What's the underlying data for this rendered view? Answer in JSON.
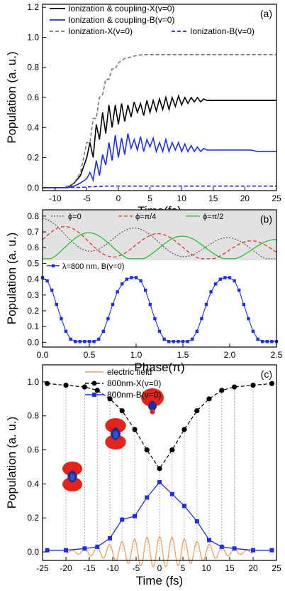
{
  "chart_data": [
    {
      "type": "line",
      "panel_label": "(a)",
      "xlabel": "Time(fs)",
      "ylabel": "Population (a. u.)",
      "xlim": [
        -12,
        25
      ],
      "ylim": [
        -0.02,
        1.22
      ],
      "xticks": [
        "-10",
        "-5",
        "0",
        "5",
        "10",
        "15",
        "20",
        "25"
      ],
      "yticks": [
        "0.0",
        "0.2",
        "0.4",
        "0.6",
        "0.8",
        "1.0",
        "1.2"
      ],
      "legend": [
        "Ionization & coupling-X(v=0)",
        "Ionization & coupling-B(v=0)",
        "Ionization-X(v=0)",
        "Ionization-B(v=0)"
      ],
      "series": [
        {
          "name": "Ionization & coupling-X(v=0)",
          "color": "#000000",
          "style": "solid",
          "x": [
            -12,
            -8,
            -7,
            -6,
            -5,
            -4.5,
            -4,
            -3.5,
            -3,
            -2.5,
            -2,
            -1.5,
            -1,
            -0.5,
            0,
            0.5,
            1,
            1.5,
            2,
            2.5,
            3,
            3.5,
            4,
            4.5,
            5,
            5.5,
            6,
            6.5,
            7,
            7.5,
            8,
            8.5,
            9,
            9.5,
            10,
            10.5,
            11,
            11.5,
            12,
            12.5,
            13,
            13.5,
            14,
            15,
            16,
            17,
            18,
            19,
            20,
            21,
            22,
            23,
            24,
            25
          ],
          "y": [
            0,
            0,
            0.03,
            0.08,
            0.2,
            0.3,
            0.2,
            0.42,
            0.32,
            0.5,
            0.36,
            0.55,
            0.4,
            0.55,
            0.42,
            0.56,
            0.44,
            0.55,
            0.47,
            0.57,
            0.5,
            0.56,
            0.48,
            0.58,
            0.5,
            0.58,
            0.51,
            0.59,
            0.52,
            0.6,
            0.52,
            0.6,
            0.54,
            0.61,
            0.55,
            0.6,
            0.56,
            0.6,
            0.57,
            0.6,
            0.57,
            0.59,
            0.58,
            0.58,
            0.58,
            0.58,
            0.58,
            0.58,
            0.58,
            0.58,
            0.58,
            0.58,
            0.58,
            0.58
          ]
        },
        {
          "name": "Ionization & coupling-B(v=0)",
          "color": "#1f2fe6",
          "style": "solid",
          "x": [
            -12,
            -8,
            -7,
            -6,
            -5,
            -4.5,
            -4,
            -3.5,
            -3,
            -2.5,
            -2,
            -1.5,
            -1,
            -0.5,
            0,
            0.5,
            1,
            1.5,
            2,
            2.5,
            3,
            3.5,
            4,
            4.5,
            5,
            5.5,
            6,
            6.5,
            7,
            7.5,
            8,
            8.5,
            9,
            9.5,
            10,
            10.5,
            11,
            11.5,
            12,
            12.5,
            13,
            13.5,
            14,
            15,
            16,
            17,
            18,
            19,
            20,
            21,
            22,
            23,
            24,
            25
          ],
          "y": [
            0,
            0,
            0.01,
            0.03,
            0.06,
            0.1,
            0.05,
            0.18,
            0.08,
            0.22,
            0.15,
            0.3,
            0.18,
            0.35,
            0.2,
            0.33,
            0.22,
            0.36,
            0.26,
            0.32,
            0.25,
            0.34,
            0.24,
            0.32,
            0.27,
            0.33,
            0.24,
            0.3,
            0.24,
            0.32,
            0.24,
            0.3,
            0.25,
            0.3,
            0.24,
            0.29,
            0.24,
            0.28,
            0.24,
            0.27,
            0.24,
            0.26,
            0.25,
            0.25,
            0.25,
            0.25,
            0.25,
            0.25,
            0.25,
            0.25,
            0.24,
            0.24,
            0.24,
            0.24
          ]
        },
        {
          "name": "Ionization-X(v=0)",
          "color": "#777777",
          "style": "dashed",
          "x": [
            -12,
            -9,
            -8,
            -7,
            -6,
            -5,
            -4.5,
            -4,
            -3.5,
            -3,
            -2.5,
            -2,
            -1.5,
            -1,
            -0.5,
            0,
            1,
            2,
            3,
            4,
            5,
            6,
            7,
            8,
            10,
            15,
            20,
            25
          ],
          "y": [
            0,
            0,
            0.01,
            0.03,
            0.1,
            0.3,
            0.3,
            0.46,
            0.46,
            0.6,
            0.62,
            0.72,
            0.72,
            0.79,
            0.79,
            0.83,
            0.86,
            0.87,
            0.88,
            0.885,
            0.885,
            0.885,
            0.885,
            0.885,
            0.885,
            0.885,
            0.885,
            0.885
          ]
        },
        {
          "name": "Ionization-B(v=0)",
          "color": "#1f2fe6",
          "style": "dashed",
          "x": [
            -12,
            -8,
            -6,
            -5,
            -4,
            -3,
            -2,
            0,
            25
          ],
          "y": [
            0,
            0,
            0.002,
            0.004,
            0.006,
            0.008,
            0.01,
            0.01,
            0.01
          ]
        }
      ]
    },
    {
      "type": "line",
      "panel_label": "(b)",
      "xlabel": "Phase(π)",
      "ylabel": "Population (a. u.)",
      "xlim": [
        0,
        2.5
      ],
      "ylim": [
        -0.03,
        0.84
      ],
      "xticks": [
        "0.0",
        "0.5",
        "1.0",
        "1.5",
        "2.0",
        "2.5"
      ],
      "yticks": [
        "0.0",
        "0.1",
        "0.2",
        "0.3",
        "0.4",
        "0.5",
        "0.6",
        "0.7",
        "0.8"
      ],
      "inset_legend": [
        "ϕ=0",
        "ϕ=π/4",
        "ϕ=π/2"
      ],
      "series": [
        {
          "name": "λ=800 nm, B(v=0)",
          "color": "#1f2fe6",
          "style": "solid-square-markers",
          "x": [
            0,
            0.05,
            0.1,
            0.15,
            0.2,
            0.25,
            0.3,
            0.35,
            0.4,
            0.45,
            0.5,
            0.55,
            0.6,
            0.65,
            0.7,
            0.75,
            0.8,
            0.85,
            0.9,
            0.95,
            1.0,
            1.05,
            1.1,
            1.15,
            1.2,
            1.25,
            1.3,
            1.35,
            1.4,
            1.45,
            1.5,
            1.55,
            1.6,
            1.65,
            1.7,
            1.75,
            1.8,
            1.85,
            1.9,
            1.95,
            2.0,
            2.05,
            2.1,
            2.15,
            2.2,
            2.25,
            2.3,
            2.35,
            2.4,
            2.45,
            2.5
          ],
          "y": [
            0.41,
            0.39,
            0.33,
            0.24,
            0.15,
            0.07,
            0.02,
            0.005,
            0.005,
            0.005,
            0.005,
            0.005,
            0.02,
            0.07,
            0.15,
            0.24,
            0.32,
            0.37,
            0.4,
            0.41,
            0.41,
            0.39,
            0.33,
            0.24,
            0.15,
            0.07,
            0.02,
            0.005,
            0.005,
            0.005,
            0.005,
            0.005,
            0.02,
            0.07,
            0.15,
            0.24,
            0.32,
            0.37,
            0.4,
            0.41,
            0.41,
            0.39,
            0.33,
            0.24,
            0.15,
            0.07,
            0.02,
            0.005,
            0.005,
            0.005,
            0.005
          ]
        },
        {
          "name": "ϕ=0",
          "color": "#555555",
          "style": "dotted",
          "x": [
            0,
            2.5
          ],
          "y": [
            0.74,
            0.62
          ],
          "wave_phase": 0
        },
        {
          "name": "ϕ=π/4",
          "color": "#e6281c",
          "style": "dashed",
          "x": [
            0,
            2.5
          ],
          "y": [
            0.7,
            0.62
          ],
          "wave_phase": 0.25
        },
        {
          "name": "ϕ=π/2",
          "color": "#19c219",
          "style": "solid",
          "x": [
            0,
            2.5
          ],
          "y": [
            0.66,
            0.64
          ],
          "wave_phase": 0.5
        }
      ],
      "legend": [
        "λ=800 nm, B(v=0)"
      ]
    },
    {
      "type": "line",
      "panel_label": "(c)",
      "xlabel": "Time (fs)",
      "ylabel": "Population (a. u.)",
      "xlim": [
        -25,
        25
      ],
      "ylim": [
        -0.05,
        1.1
      ],
      "xticks": [
        "-25",
        "-20",
        "-15",
        "-10",
        "-5",
        "0",
        "5",
        "10",
        "15",
        "20",
        "25"
      ],
      "yticks": [
        "0.0",
        "0.2",
        "0.4",
        "0.6",
        "0.8",
        "1.0"
      ],
      "legend": [
        "electric field",
        "800nm-X(v=0)",
        "800nm-B(v=0)"
      ],
      "series": [
        {
          "name": "800nm-X(v=0)",
          "color": "#000000",
          "style": "dashed-circle-markers",
          "x": [
            -24,
            -20,
            -16,
            -13.3,
            -10.6,
            -8,
            -5.3,
            -2.7,
            0,
            2.7,
            5.3,
            8,
            10.6,
            13.3,
            16,
            20,
            24
          ],
          "y": [
            0.99,
            0.98,
            0.97,
            0.95,
            0.9,
            0.83,
            0.72,
            0.6,
            0.49,
            0.6,
            0.72,
            0.83,
            0.9,
            0.95,
            0.97,
            0.98,
            0.99
          ]
        },
        {
          "name": "800nm-B(v=0)",
          "color": "#1f2fe6",
          "style": "solid-square-markers",
          "x": [
            -24,
            -20,
            -16,
            -13.3,
            -10.6,
            -8,
            -5.3,
            -2.7,
            0,
            2.7,
            5.3,
            8,
            10.6,
            13.3,
            16,
            20,
            24
          ],
          "y": [
            0.01,
            0.01,
            0.02,
            0.03,
            0.08,
            0.19,
            0.21,
            0.32,
            0.41,
            0.34,
            0.27,
            0.18,
            0.07,
            0.03,
            0.02,
            0.01,
            0.01
          ]
        },
        {
          "name": "electric field",
          "color": "#f0a060",
          "style": "solid",
          "x": [
            -20,
            20
          ],
          "y": [
            0,
            0
          ],
          "amplitude": 0.09,
          "period_fs": 2.67
        }
      ]
    }
  ]
}
